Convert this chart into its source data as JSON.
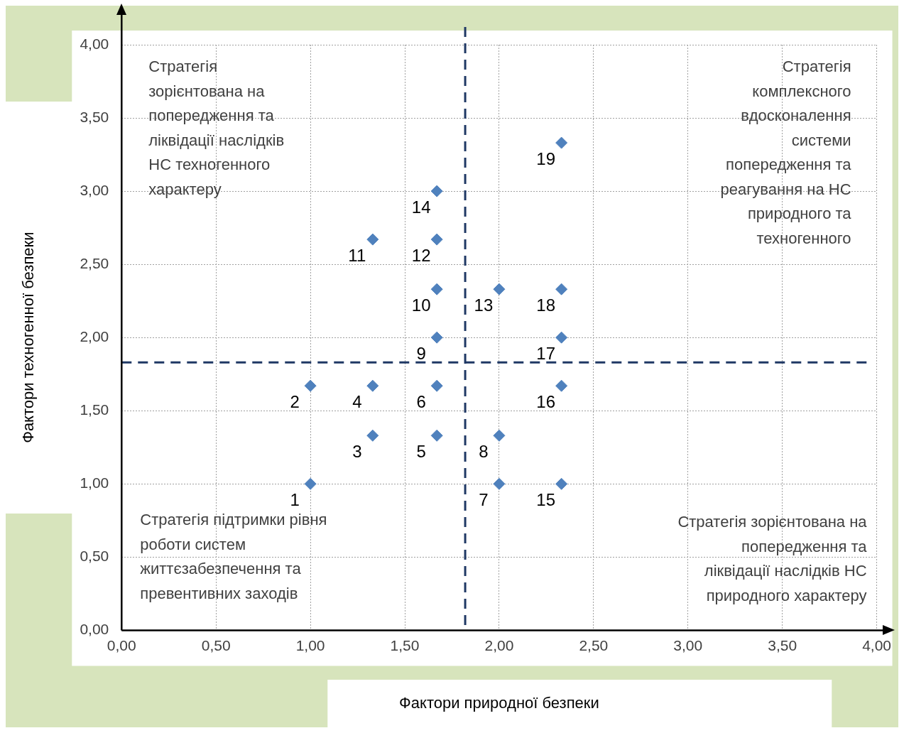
{
  "chart_data": {
    "type": "scatter",
    "xlabel": "Фактори природної безпеки",
    "ylabel": "Фактори техногенної безпеки",
    "x": [
      1.0,
      1.0,
      1.33,
      1.33,
      1.67,
      1.67,
      2.0,
      2.0,
      1.67,
      1.67,
      1.33,
      1.67,
      2.0,
      1.67,
      2.33,
      2.33,
      2.33,
      2.33,
      2.33
    ],
    "values": [
      1.0,
      1.67,
      1.33,
      1.67,
      1.33,
      1.67,
      1.0,
      1.33,
      2.0,
      2.33,
      2.67,
      2.67,
      2.33,
      3.0,
      1.0,
      1.67,
      2.0,
      2.33,
      3.33
    ],
    "color": "#4f81bd",
    "marker": "diamond",
    "grid": true,
    "legend": false,
    "xlim": [
      0,
      4
    ],
    "ylim": [
      0,
      4
    ],
    "xticks": [
      {
        "value": 0,
        "label": "0,00"
      },
      {
        "value": 0.5,
        "label": "0,50"
      },
      {
        "value": 1,
        "label": "1,00"
      },
      {
        "value": 1.5,
        "label": "1,50"
      },
      {
        "value": 2,
        "label": "2,00"
      },
      {
        "value": 2.5,
        "label": "2,50"
      },
      {
        "value": 3,
        "label": "3,00"
      },
      {
        "value": 3.5,
        "label": "3,50"
      },
      {
        "value": 4,
        "label": "4,00"
      }
    ],
    "yticks": [
      {
        "value": 0,
        "label": "0,00"
      },
      {
        "value": 0.5,
        "label": "0,50"
      },
      {
        "value": 1,
        "label": "1,00"
      },
      {
        "value": 1.5,
        "label": "1,50"
      },
      {
        "value": 2,
        "label": "2,00"
      },
      {
        "value": 2.5,
        "label": "2,50"
      },
      {
        "value": 3,
        "label": "3,00"
      },
      {
        "value": 3.5,
        "label": "3,50"
      },
      {
        "value": 4,
        "label": "4,00"
      }
    ],
    "ref_lines": [
      {
        "axis": "x",
        "value": 1.82,
        "color": "#1f3864",
        "line_style": "dashed"
      },
      {
        "axis": "y",
        "value": 1.83,
        "color": "#1f3864",
        "line_style": "dashed"
      }
    ],
    "annotations": [
      "Стратегія\nзорієнтована на\nпопередження та\nліквідації наслідків\nНС техногенного\nхарактеру",
      "Стратегія\nкомплексного\nвдосконалення\nсистеми\nпопередження та\nреагування на НС\nприродного та\nтехногенного",
      "Стратегія підтримки рівня\nроботи систем\nжиттєзабезпечення та\nпревентивних заходів",
      "Стратегія зорієнтована на\nпопередження та\nліквідації наслідків НС\nприродного характеру",
      {
        "text": "1",
        "x": 1.0,
        "y": 1.0
      },
      {
        "text": "2",
        "x": 1.0,
        "y": 1.67
      },
      {
        "text": "3",
        "x": 1.33,
        "y": 1.33
      },
      {
        "text": "4",
        "x": 1.33,
        "y": 1.67
      },
      {
        "text": "5",
        "x": 1.67,
        "y": 1.33
      },
      {
        "text": "6",
        "x": 1.67,
        "y": 1.67
      },
      {
        "text": "7",
        "x": 2.0,
        "y": 1.0
      },
      {
        "text": "8",
        "x": 2.0,
        "y": 1.33
      },
      {
        "text": "9",
        "x": 1.67,
        "y": 2.0
      },
      {
        "text": "10",
        "x": 1.67,
        "y": 2.33
      },
      {
        "text": "11",
        "x": 1.33,
        "y": 2.67
      },
      {
        "text": "12",
        "x": 1.67,
        "y": 2.67
      },
      {
        "text": "13",
        "x": 2.0,
        "y": 2.33
      },
      {
        "text": "14",
        "x": 1.67,
        "y": 3.0
      },
      {
        "text": "15",
        "x": 2.33,
        "y": 1.0
      },
      {
        "text": "16",
        "x": 2.33,
        "y": 1.67
      },
      {
        "text": "17",
        "x": 2.33,
        "y": 2.0
      },
      {
        "text": "18",
        "x": 2.33,
        "y": 2.33
      },
      {
        "text": "19",
        "x": 2.33,
        "y": 3.33
      }
    ]
  }
}
